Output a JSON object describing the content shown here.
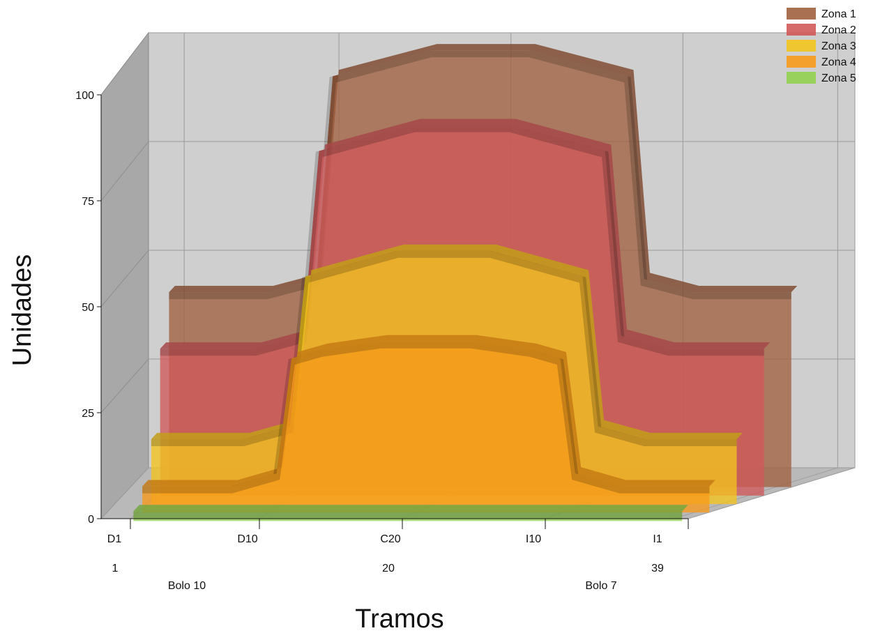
{
  "chart_data": {
    "type": "area",
    "subtype": "3d-stacked-depth-area",
    "title": "",
    "xlabel": "Tramos",
    "ylabel": "Unidades",
    "ylim": [
      0,
      100
    ],
    "y_ticks": [
      0,
      25,
      50,
      75,
      100
    ],
    "x_ticks": [
      {
        "label": "D1",
        "index": 1
      },
      {
        "label": "D10",
        "index": 10
      },
      {
        "label": "C20",
        "index": 20
      },
      {
        "label": "I10",
        "index": 30
      },
      {
        "label": "I1",
        "index": 39
      }
    ],
    "x_numbers": [
      {
        "label": "1",
        "index": 1
      },
      {
        "label": "20",
        "index": 20
      },
      {
        "label": "39",
        "index": 39
      }
    ],
    "annotations": [
      {
        "text": "Bolo 10",
        "index": 6
      },
      {
        "text": "Bolo 7",
        "index": 35
      }
    ],
    "grid": true,
    "legend_position": "top-right",
    "series": [
      {
        "name": "Zona 1",
        "color": "#A0603F",
        "points": [
          [
            1,
            44
          ],
          [
            7,
            44
          ],
          [
            10,
            47
          ],
          [
            11,
            94
          ],
          [
            13,
            96
          ],
          [
            17,
            100
          ],
          [
            23,
            100
          ],
          [
            27,
            96
          ],
          [
            29,
            94
          ],
          [
            30,
            47
          ],
          [
            33,
            44
          ],
          [
            39,
            44
          ]
        ]
      },
      {
        "name": "Zona 2",
        "color": "#D0595A",
        "points": [
          [
            1,
            33
          ],
          [
            7,
            33
          ],
          [
            10,
            36
          ],
          [
            11,
            79
          ],
          [
            13,
            81
          ],
          [
            17,
            85
          ],
          [
            23,
            85
          ],
          [
            27,
            81
          ],
          [
            29,
            79
          ],
          [
            30,
            36
          ],
          [
            33,
            33
          ],
          [
            39,
            33
          ]
        ]
      },
      {
        "name": "Zona 3",
        "color": "#F2C41E",
        "points": [
          [
            1,
            14
          ],
          [
            7,
            14
          ],
          [
            10,
            17
          ],
          [
            11,
            52
          ],
          [
            13,
            54
          ],
          [
            17,
            58
          ],
          [
            23,
            58
          ],
          [
            27,
            54
          ],
          [
            29,
            52
          ],
          [
            30,
            17
          ],
          [
            33,
            14
          ],
          [
            39,
            14
          ]
        ]
      },
      {
        "name": "Zona 4",
        "color": "#F79A1A",
        "points": [
          [
            1,
            5
          ],
          [
            7,
            5
          ],
          [
            10,
            8
          ],
          [
            11,
            35
          ],
          [
            13,
            37
          ],
          [
            17,
            39
          ],
          [
            23,
            39
          ],
          [
            27,
            37
          ],
          [
            29,
            35
          ],
          [
            30,
            8
          ],
          [
            33,
            5
          ],
          [
            39,
            5
          ]
        ]
      },
      {
        "name": "Zona 5",
        "color": "#92D050",
        "points": [
          [
            1,
            0
          ],
          [
            39,
            0
          ]
        ]
      }
    ]
  }
}
